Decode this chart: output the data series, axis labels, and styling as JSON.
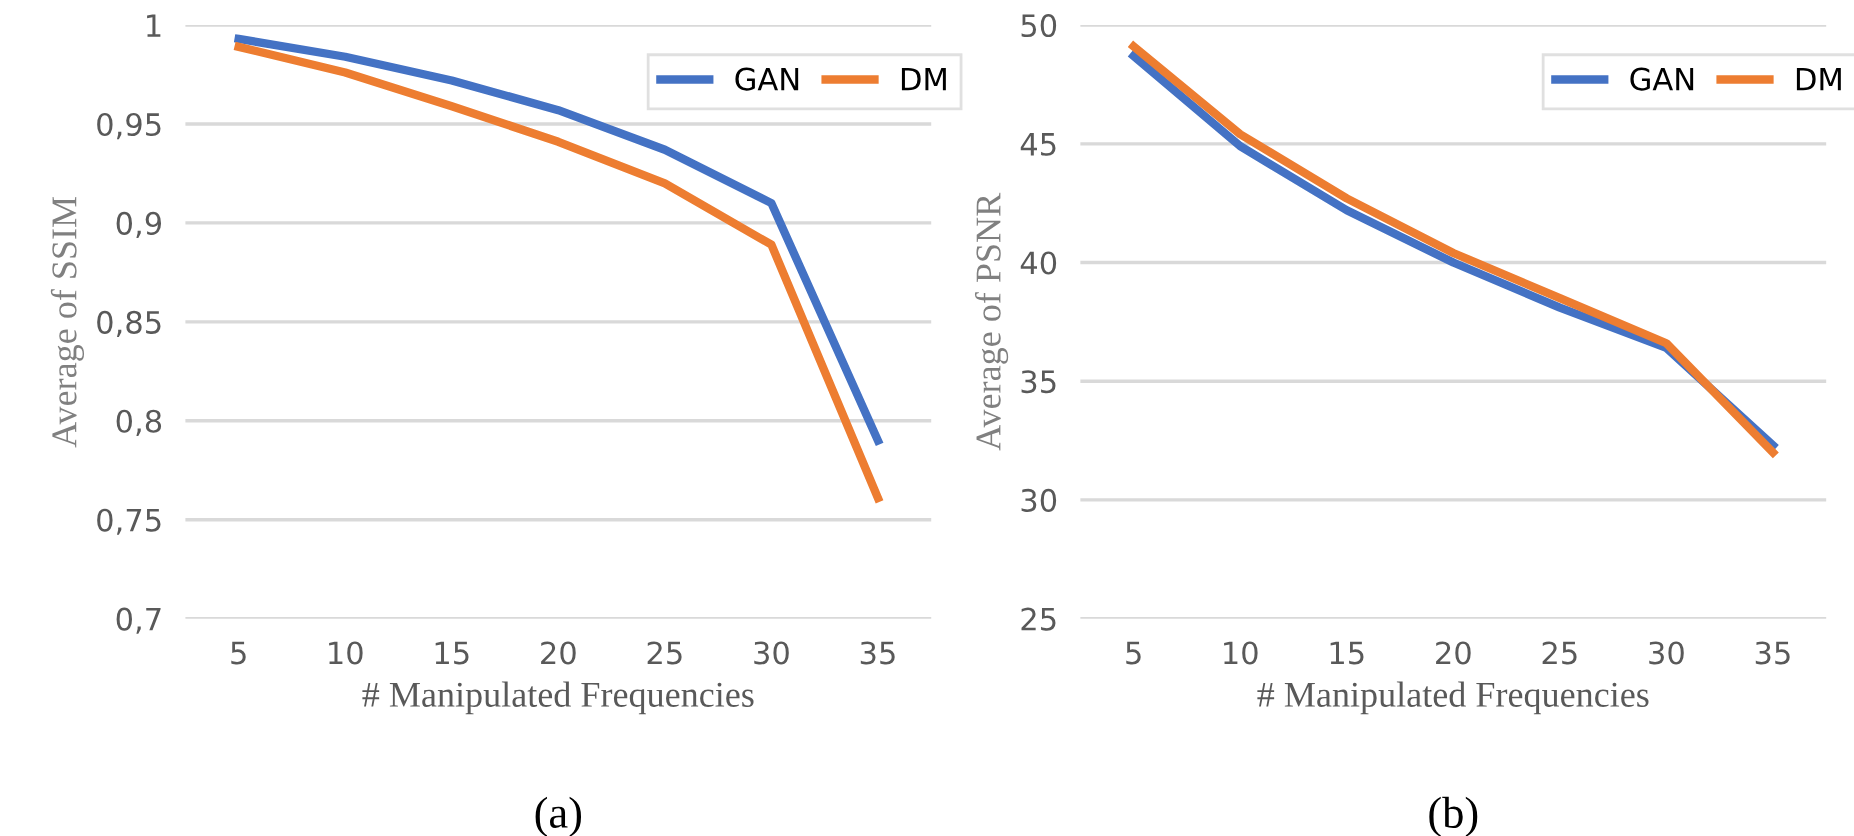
{
  "chart_data": [
    {
      "type": "line",
      "categories": [
        "5",
        "10",
        "15",
        "20",
        "25",
        "30",
        "35"
      ],
      "xlabel": "# Manipulated Frequencies",
      "ylabel": "Average of SSIM",
      "series": [
        {
          "name": "GAN",
          "color": "#4472c4",
          "values": [
            0.993,
            0.984,
            0.972,
            0.957,
            0.937,
            0.91,
            0.79
          ]
        },
        {
          "name": "DM",
          "color": "#ed7d31",
          "values": [
            0.989,
            0.976,
            0.959,
            0.941,
            0.92,
            0.889,
            0.761
          ]
        }
      ],
      "ylim": [
        0.7,
        1
      ],
      "yticks": [
        {
          "value": 0.7,
          "label": "0,7"
        },
        {
          "value": 0.75,
          "label": "0,75"
        },
        {
          "value": 0.8,
          "label": "0,8"
        },
        {
          "value": 0.85,
          "label": "0,85"
        },
        {
          "value": 0.9,
          "label": "0,9"
        },
        {
          "value": 0.95,
          "label": "0,95"
        },
        1
      ],
      "grid": "y",
      "legend": "top right",
      "annotations": [
        "(a)"
      ]
    },
    {
      "type": "line",
      "categories": [
        "5",
        "10",
        "15",
        "20",
        "25",
        "30",
        "35"
      ],
      "xlabel": "# Manipulated Frequencies",
      "ylabel": "Average of PSNR",
      "series": [
        {
          "name": "GAN",
          "color": "#4472c4",
          "values": [
            48.7,
            44.9,
            42.2,
            40.0,
            38.1,
            36.4,
            32.3
          ]
        },
        {
          "name": "DM",
          "color": "#ed7d31",
          "values": [
            49.1,
            45.4,
            42.7,
            40.4,
            38.5,
            36.6,
            32.0
          ]
        }
      ],
      "ylim": [
        25,
        50
      ],
      "yticks": [
        25,
        30,
        35,
        40,
        45,
        50
      ],
      "grid": "y",
      "legend": "top right",
      "annotations": [
        "(b)"
      ]
    }
  ]
}
